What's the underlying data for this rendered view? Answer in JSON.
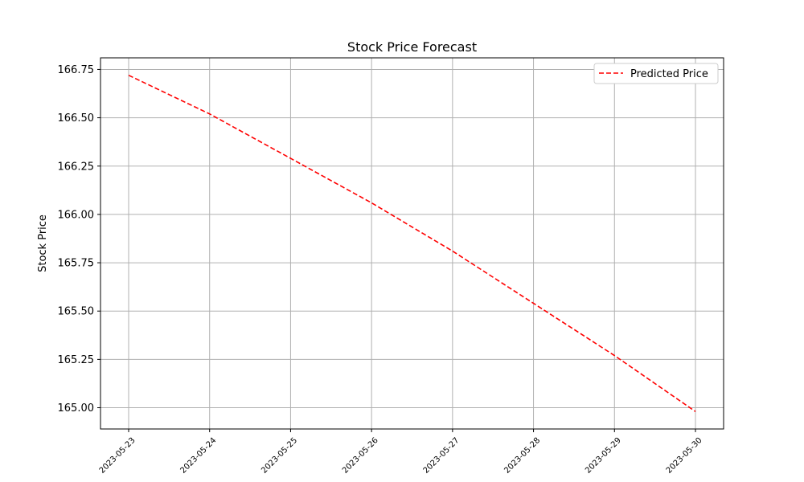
{
  "chart_data": {
    "type": "line",
    "title": "Stock Price Forecast",
    "xlabel": "",
    "ylabel": "Stock Price",
    "x": [
      "2023-05-23",
      "2023-05-24",
      "2023-05-25",
      "2023-05-26",
      "2023-05-27",
      "2023-05-28",
      "2023-05-29",
      "2023-05-30"
    ],
    "series": [
      {
        "name": "Predicted Price",
        "values": [
          166.72,
          166.52,
          166.29,
          166.06,
          165.81,
          165.54,
          165.27,
          164.98
        ],
        "color": "#ff0000",
        "line_style": "dashed"
      }
    ],
    "ylim": [
      164.89,
      166.81
    ],
    "yticks": [
      "165.00",
      "165.25",
      "165.50",
      "165.75",
      "166.00",
      "166.25",
      "166.50",
      "166.75"
    ],
    "xtick_rotation": 45,
    "grid": true,
    "legend_position": "top-right"
  }
}
